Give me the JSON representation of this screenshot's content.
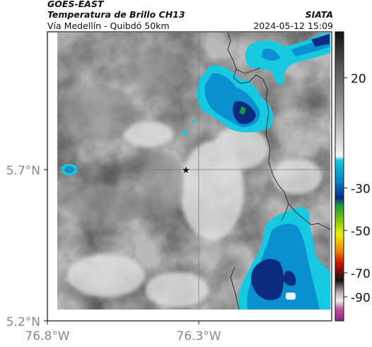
{
  "header": {
    "satellite": "GOES-EAST",
    "product": "Temperatura de Brillo CH13",
    "route": "Vía Medellín - Quibdó 50km",
    "agency": "SIATA",
    "datetime": "2024-05-12 15:09"
  },
  "axes": {
    "y_ticks": [
      {
        "value": 5.7,
        "label": "5.7°N"
      },
      {
        "value": 5.2,
        "label": "5.2°N"
      }
    ],
    "x_ticks": [
      {
        "value": -76.8,
        "label": "76.8°W"
      },
      {
        "value": -76.3,
        "label": "76.3°W"
      }
    ]
  },
  "colorbar": {
    "labels": [
      "20",
      "-30",
      "-50",
      "-70",
      "-90"
    ],
    "colors": {
      "warm_dark": "#222222",
      "warm_mid": "#9a9a9a",
      "warm_light": "#f5f5f5",
      "cold_cyan": "#16c8e0",
      "cold_blue": "#0080c8",
      "cold_navy": "#0c2a80",
      "green": "#2ea02e",
      "yellow": "#f0f000",
      "red": "#e02000",
      "black": "#111111",
      "magenta": "#c050a0"
    }
  },
  "map": {
    "marker": "star-icon",
    "grid": true
  }
}
